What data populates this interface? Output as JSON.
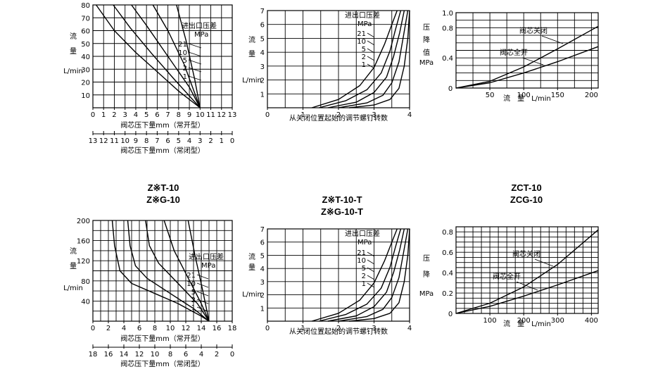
{
  "page_titles": [
    {
      "lines": [
        "Z※T-10",
        "Z※G-10"
      ]
    },
    {
      "lines": [
        "Z※T-10-T",
        "Z※G-10-T"
      ]
    },
    {
      "lines": [
        "ZCT-10",
        "ZCG-10"
      ]
    }
  ],
  "chart_data": [
    {
      "type": "line",
      "ylabel_lines": [
        "流",
        "量",
        "L/min"
      ],
      "xlabel": "阀芯压下量mm（常开型）",
      "x2label": "阀芯压下量mm（常闭型）",
      "x_ticks": [
        "0",
        "1",
        "2",
        "3",
        "4",
        "5",
        "6",
        "7",
        "8",
        "9",
        "10",
        "11",
        "12",
        "13"
      ],
      "x2_ticks": [
        "13",
        "12",
        "11",
        "10",
        "9",
        "8",
        "7",
        "6",
        "5",
        "4",
        "3",
        "2",
        "1",
        "0"
      ],
      "xlim": [
        0,
        13
      ],
      "y_ticks": [
        "10",
        "20",
        "30",
        "40",
        "50",
        "60",
        "70",
        "80"
      ],
      "ylim": [
        0,
        80
      ],
      "grid": true,
      "annotation_lines": [
        "进出口压差",
        "MPa"
      ],
      "series": [
        {
          "name": "21",
          "x": [
            0.3,
            2,
            4,
            6,
            8,
            10
          ],
          "y": [
            80,
            60,
            43,
            28,
            13,
            0
          ]
        },
        {
          "name": "10",
          "x": [
            1.9,
            3.5,
            5.5,
            7.5,
            10
          ],
          "y": [
            80,
            62,
            42,
            23,
            0
          ]
        },
        {
          "name": "5",
          "x": [
            3.6,
            5,
            7,
            9,
            10
          ],
          "y": [
            80,
            64,
            40,
            16,
            0
          ]
        },
        {
          "name": "2",
          "x": [
            5.6,
            7,
            8.5,
            10
          ],
          "y": [
            80,
            60,
            34,
            0
          ]
        },
        {
          "name": "1",
          "x": [
            7.8,
            8.7,
            9.5,
            10
          ],
          "y": [
            80,
            52,
            22,
            0
          ]
        }
      ]
    },
    {
      "type": "line",
      "ylabel_lines": [
        "流",
        "量",
        "L/min"
      ],
      "xlabel": "从关闭位置起始的调节螺钉转数",
      "x_ticks": [
        "0",
        "1",
        "2",
        "3",
        "4"
      ],
      "xlim": [
        0,
        4
      ],
      "y_ticks": [
        "1",
        "2",
        "3",
        "4",
        "5",
        "6",
        "7"
      ],
      "ylim": [
        0,
        7
      ],
      "grid": true,
      "annotation_lines": [
        "进出口压差",
        "MPa"
      ],
      "series": [
        {
          "name": "21",
          "x": [
            1.25,
            2,
            2.6,
            3.0,
            3.3,
            3.5,
            3.65
          ],
          "y": [
            0,
            0.6,
            1.6,
            2.9,
            4.6,
            6.0,
            7.0
          ]
        },
        {
          "name": "10",
          "x": [
            1.45,
            2.2,
            2.8,
            3.2,
            3.45,
            3.6,
            3.75
          ],
          "y": [
            0,
            0.5,
            1.3,
            2.5,
            4.1,
            5.6,
            7.0
          ]
        },
        {
          "name": "5",
          "x": [
            1.7,
            2.5,
            3.0,
            3.35,
            3.55,
            3.72,
            3.85
          ],
          "y": [
            0,
            0.4,
            1.1,
            2.2,
            3.7,
            5.4,
            7.0
          ]
        },
        {
          "name": "2",
          "x": [
            2.0,
            2.8,
            3.25,
            3.5,
            3.7,
            3.83,
            3.95
          ],
          "y": [
            0,
            0.35,
            0.9,
            1.8,
            3.3,
            5.2,
            7.0
          ]
        },
        {
          "name": "1",
          "x": [
            2.3,
            3.0,
            3.45,
            3.7,
            3.85,
            3.95,
            4.0
          ],
          "y": [
            0,
            0.2,
            0.6,
            1.4,
            3.0,
            5.0,
            7.0
          ]
        }
      ]
    },
    {
      "type": "line",
      "ylabel_lines": [
        "压",
        "降",
        "值",
        "MPa"
      ],
      "xlabel": "流　量　L/min",
      "x_ticks": [
        "50",
        "100",
        "150",
        "200"
      ],
      "xlim": [
        0,
        210
      ],
      "y_ticks": [
        "0.4",
        "0.8",
        "1.0"
      ],
      "ylim": [
        0,
        1.0
      ],
      "grid": true,
      "series": [
        {
          "name": "阀芯关闭",
          "x": [
            0,
            50,
            100,
            150,
            210
          ],
          "y": [
            0,
            0.09,
            0.28,
            0.52,
            0.82
          ]
        },
        {
          "name": "阀芯全开",
          "x": [
            0,
            50,
            100,
            150,
            210
          ],
          "y": [
            0,
            0.07,
            0.2,
            0.35,
            0.55
          ]
        }
      ]
    },
    {
      "type": "line",
      "ylabel_lines": [
        "流",
        "量",
        "L/min"
      ],
      "xlabel": "阀芯压下量mm（常开型）",
      "x2label": "阀芯压下量mm（常闭型）",
      "x_ticks": [
        "0",
        "2",
        "4",
        "6",
        "8",
        "10",
        "12",
        "14",
        "16",
        "18"
      ],
      "x2_ticks": [
        "18",
        "16",
        "14",
        "12",
        "10",
        "8",
        "6",
        "4",
        "2",
        "0"
      ],
      "xlim": [
        0,
        18
      ],
      "y_ticks": [
        "40",
        "80",
        "120",
        "160",
        "200"
      ],
      "ylim": [
        0,
        200
      ],
      "grid": true,
      "annotation_lines": [
        "进出口压差",
        "MPa"
      ],
      "series": [
        {
          "name": "21",
          "x": [
            2.5,
            2.8,
            3.5,
            5,
            8,
            11,
            14,
            15
          ],
          "y": [
            200,
            150,
            100,
            75,
            55,
            35,
            10,
            0
          ]
        },
        {
          "name": "10",
          "x": [
            4.5,
            4.8,
            5.5,
            7,
            10,
            13,
            15
          ],
          "y": [
            200,
            150,
            110,
            85,
            55,
            25,
            0
          ]
        },
        {
          "name": "5",
          "x": [
            6.8,
            7.3,
            8.5,
            11,
            13.5,
            15
          ],
          "y": [
            200,
            150,
            115,
            75,
            35,
            0
          ]
        },
        {
          "name": "2",
          "x": [
            9.2,
            10.5,
            12.5,
            14,
            15
          ],
          "y": [
            200,
            140,
            80,
            35,
            0
          ]
        },
        {
          "name": "1",
          "x": [
            12.3,
            13.2,
            14.2,
            15
          ],
          "y": [
            200,
            130,
            60,
            0
          ]
        }
      ]
    },
    {
      "type": "line",
      "ylabel_lines": [
        "流",
        "量",
        "L/min"
      ],
      "xlabel": "从关闭位置起始的调节螺钉转数",
      "x_ticks": [
        "0",
        "1",
        "2",
        "3",
        "4"
      ],
      "xlim": [
        0,
        4
      ],
      "y_ticks": [
        "1",
        "2",
        "3",
        "4",
        "5",
        "6",
        "7"
      ],
      "ylim": [
        0,
        7
      ],
      "grid": true,
      "annotation_lines": [
        "进出口压差",
        "MPa"
      ],
      "series": [
        {
          "name": "21",
          "x": [
            1.25,
            2,
            2.6,
            3.0,
            3.3,
            3.5,
            3.65
          ],
          "y": [
            0,
            0.6,
            1.6,
            2.9,
            4.6,
            6.0,
            7.0
          ]
        },
        {
          "name": "10",
          "x": [
            1.45,
            2.2,
            2.8,
            3.2,
            3.45,
            3.6,
            3.75
          ],
          "y": [
            0,
            0.5,
            1.3,
            2.5,
            4.1,
            5.6,
            7.0
          ]
        },
        {
          "name": "5",
          "x": [
            1.7,
            2.5,
            3.0,
            3.35,
            3.55,
            3.72,
            3.85
          ],
          "y": [
            0,
            0.4,
            1.1,
            2.2,
            3.7,
            5.4,
            7.0
          ]
        },
        {
          "name": "2",
          "x": [
            2.0,
            2.8,
            3.25,
            3.5,
            3.7,
            3.83,
            3.95
          ],
          "y": [
            0,
            0.35,
            0.9,
            1.8,
            3.3,
            5.2,
            7.0
          ]
        },
        {
          "name": "1",
          "x": [
            2.3,
            3.0,
            3.45,
            3.7,
            3.85,
            3.95,
            4.0
          ],
          "y": [
            0,
            0.2,
            0.6,
            1.4,
            3.0,
            5.0,
            7.0
          ]
        }
      ]
    },
    {
      "type": "line",
      "ylabel_lines": [
        "压",
        "降",
        "MPa"
      ],
      "xlabel": "流　量　L/min",
      "x_ticks": [
        "100",
        "200",
        "300",
        "400"
      ],
      "xlim": [
        0,
        420
      ],
      "y_ticks": [
        "0.2",
        "0.4",
        "0.6",
        "0.8"
      ],
      "ylim": [
        0,
        0.85
      ],
      "grid": true,
      "series": [
        {
          "name": "阀芯关闭",
          "x": [
            0,
            100,
            200,
            300,
            420
          ],
          "y": [
            0,
            0.1,
            0.26,
            0.48,
            0.82
          ]
        },
        {
          "name": "阀芯全开",
          "x": [
            0,
            100,
            200,
            300,
            420
          ],
          "y": [
            0,
            0.07,
            0.17,
            0.28,
            0.42
          ]
        }
      ]
    }
  ]
}
